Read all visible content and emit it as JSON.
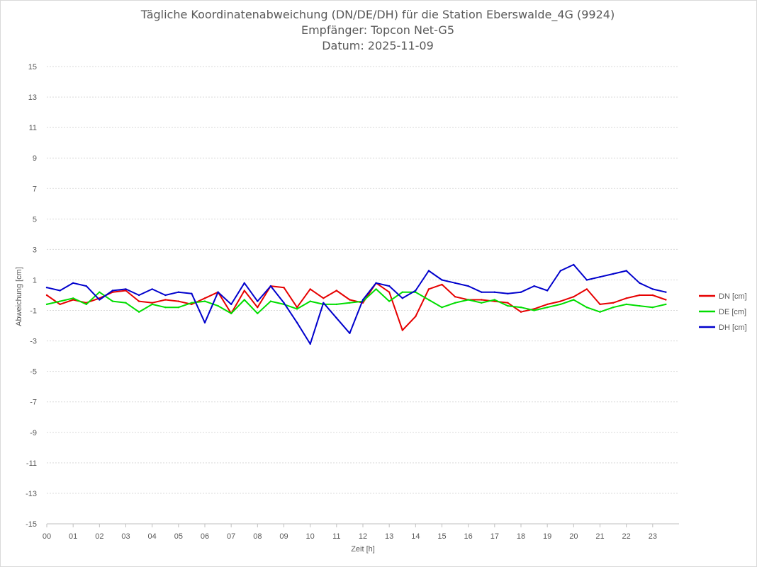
{
  "title": {
    "line1": "Tägliche Koordinatenabweichung (DN/DE/DH) für die Station Eberswalde_4G (9924)",
    "line2": "Empfänger: Topcon Net-G5",
    "line3": "Datum: 2025-11-09"
  },
  "chart_data": {
    "type": "line",
    "xlabel": "Zeit [h]",
    "ylabel": "Abweichung [cm]",
    "xlim": [
      0,
      24
    ],
    "ylim": [
      -15,
      15
    ],
    "x_ticks": [
      "00",
      "01",
      "02",
      "03",
      "04",
      "05",
      "06",
      "07",
      "08",
      "09",
      "10",
      "11",
      "12",
      "13",
      "14",
      "15",
      "16",
      "17",
      "18",
      "19",
      "20",
      "21",
      "22",
      "23"
    ],
    "y_ticks": [
      15,
      13,
      11,
      9,
      7,
      5,
      3,
      1,
      -1,
      -3,
      -5,
      -7,
      -9,
      -11,
      -13,
      -15
    ],
    "grid": "horizontal dotted",
    "legend_position": "right",
    "x": [
      0,
      0.5,
      1,
      1.5,
      2,
      2.5,
      3,
      3.5,
      4,
      4.5,
      5,
      5.5,
      6,
      6.5,
      7,
      7.5,
      8,
      8.5,
      9,
      9.5,
      10,
      10.5,
      11,
      11.5,
      12,
      12.5,
      13,
      13.5,
      14,
      14.5,
      15,
      15.5,
      16,
      16.5,
      17,
      17.5,
      18,
      18.5,
      19,
      19.5,
      20,
      20.5,
      21,
      21.5,
      22,
      22.5,
      23,
      23.5
    ],
    "series": [
      {
        "name": "DN [cm]",
        "color": "#e60000",
        "values": [
          0.0,
          -0.6,
          -0.3,
          -0.5,
          -0.2,
          0.2,
          0.3,
          -0.4,
          -0.5,
          -0.3,
          -0.4,
          -0.6,
          -0.2,
          0.2,
          -1.2,
          0.3,
          -0.8,
          0.6,
          0.5,
          -0.8,
          0.4,
          -0.2,
          0.3,
          -0.3,
          -0.5,
          0.8,
          0.2,
          -2.3,
          -1.4,
          0.4,
          0.7,
          -0.1,
          -0.3,
          -0.3,
          -0.4,
          -0.5,
          -1.1,
          -0.9,
          -0.6,
          -0.4,
          -0.1,
          0.4,
          -0.6,
          -0.5,
          -0.2,
          0.0,
          0.0,
          -0.3
        ]
      },
      {
        "name": "DE [cm]",
        "color": "#00dd00",
        "values": [
          -0.6,
          -0.4,
          -0.2,
          -0.6,
          0.2,
          -0.4,
          -0.5,
          -1.1,
          -0.6,
          -0.8,
          -0.8,
          -0.5,
          -0.4,
          -0.7,
          -1.2,
          -0.3,
          -1.2,
          -0.4,
          -0.6,
          -0.9,
          -0.4,
          -0.6,
          -0.6,
          -0.5,
          -0.4,
          0.4,
          -0.4,
          0.2,
          0.2,
          -0.3,
          -0.8,
          -0.5,
          -0.3,
          -0.5,
          -0.3,
          -0.7,
          -0.8,
          -1.0,
          -0.8,
          -0.6,
          -0.3,
          -0.8,
          -1.1,
          -0.8,
          -0.6,
          -0.7,
          -0.8,
          -0.6
        ]
      },
      {
        "name": "DH [cm]",
        "color": "#0000cc",
        "values": [
          0.5,
          0.3,
          0.8,
          0.6,
          -0.3,
          0.3,
          0.4,
          0.0,
          0.4,
          0.0,
          0.2,
          0.1,
          -1.8,
          0.2,
          -0.6,
          0.8,
          -0.4,
          0.6,
          -0.5,
          -1.8,
          -3.2,
          -0.5,
          -1.5,
          -2.5,
          -0.3,
          0.8,
          0.6,
          -0.2,
          0.3,
          1.6,
          1.0,
          0.8,
          0.6,
          0.2,
          0.2,
          0.1,
          0.2,
          0.6,
          0.3,
          1.6,
          2.0,
          1.0,
          1.2,
          1.4,
          1.6,
          0.8,
          0.4,
          0.2
        ]
      }
    ]
  },
  "legend": [
    {
      "label": "DN [cm]",
      "color": "#e60000"
    },
    {
      "label": "DE [cm]",
      "color": "#00dd00"
    },
    {
      "label": "DH [cm]",
      "color": "#0000cc"
    }
  ]
}
